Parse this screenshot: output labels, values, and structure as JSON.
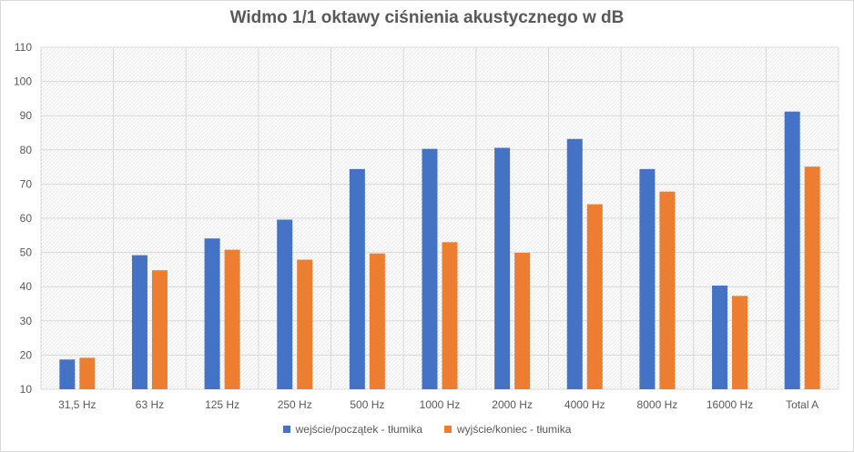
{
  "chart_data": {
    "type": "bar",
    "title": "Widmo 1/1 oktawy ciśnienia akustycznego w dB",
    "xlabel": "",
    "ylabel": "",
    "categories": [
      "31,5 Hz",
      "63 Hz",
      "125 Hz",
      "250 Hz",
      "500 Hz",
      "1000 Hz",
      "2000 Hz",
      "4000 Hz",
      "8000 Hz",
      "16000 Hz",
      "Total A"
    ],
    "series": [
      {
        "name": "wejście/początek - tłumika",
        "color": "#4472c4",
        "values": [
          18.7,
          49.2,
          54.1,
          59.6,
          74.4,
          80.3,
          80.6,
          83.2,
          74.4,
          40.3,
          91.2
        ]
      },
      {
        "name": "wyjście/koniec - tłumika",
        "color": "#ed7d31",
        "values": [
          19.2,
          44.8,
          50.8,
          47.9,
          49.7,
          53.0,
          49.9,
          64.1,
          67.8,
          37.3,
          75.1
        ]
      }
    ],
    "ylim": [
      10,
      110
    ],
    "yticks": [
      10,
      20,
      30,
      40,
      50,
      60,
      70,
      80,
      90,
      100,
      110
    ],
    "grid": true,
    "legend_position": "bottom"
  }
}
